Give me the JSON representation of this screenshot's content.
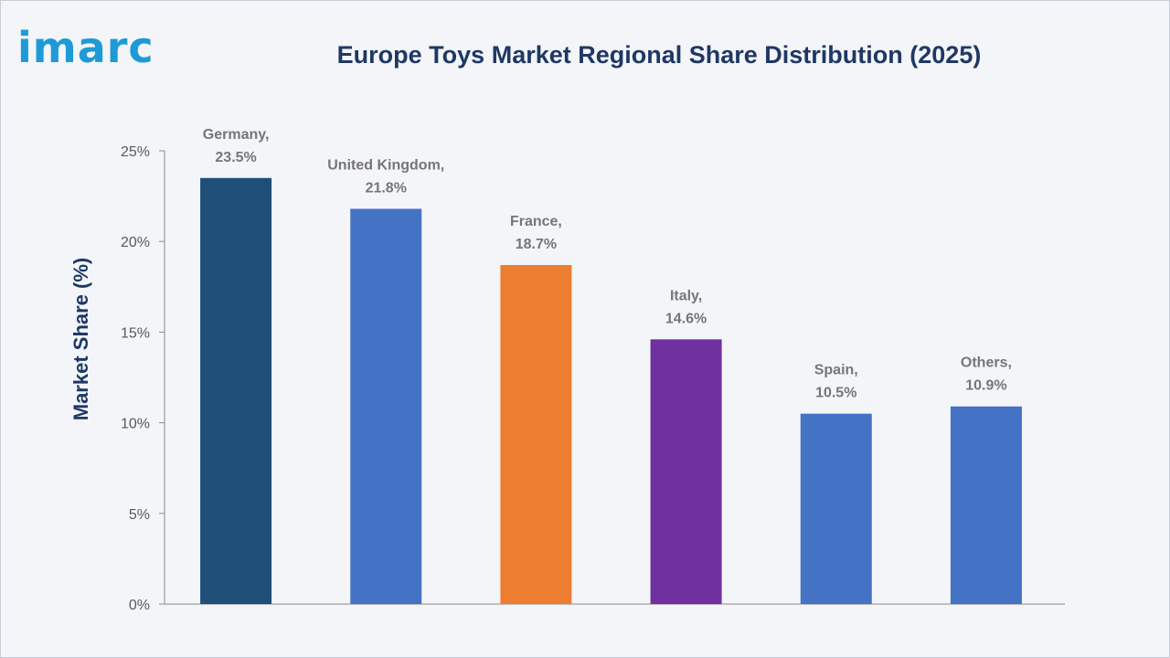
{
  "logo": {
    "text": "imarc",
    "color": "#1e9ad6"
  },
  "chart_data": {
    "type": "bar",
    "title": "Europe Toys Market Regional Share Distribution (2025)",
    "xlabel": "",
    "ylabel": "Market Share (%)",
    "categories": [
      "Germany",
      "United Kingdom",
      "France",
      "Italy",
      "Spain",
      "Others"
    ],
    "values": [
      23.5,
      21.8,
      18.7,
      14.6,
      10.5,
      10.9
    ],
    "data_labels": [
      [
        "Germany,",
        "23.5%"
      ],
      [
        "United Kingdom,",
        "21.8%"
      ],
      [
        "France,",
        "18.7%"
      ],
      [
        "Italy,",
        "14.6%"
      ],
      [
        "Spain,",
        "10.5%"
      ],
      [
        "Others,",
        "10.9%"
      ]
    ],
    "colors": [
      "#1f4e79",
      "#4472c4",
      "#ed7d31",
      "#7030a0",
      "#4472c4",
      "#4472c4"
    ],
    "ylim": [
      0,
      25
    ],
    "yticks": [
      {
        "value": 0,
        "label": "0%"
      },
      {
        "value": 5,
        "label": "5%"
      },
      {
        "value": 10,
        "label": "10%"
      },
      {
        "value": 15,
        "label": "15%"
      },
      {
        "value": 20,
        "label": "20%"
      },
      {
        "value": 25,
        "label": "25%"
      }
    ],
    "grid": false,
    "legend": "none"
  }
}
